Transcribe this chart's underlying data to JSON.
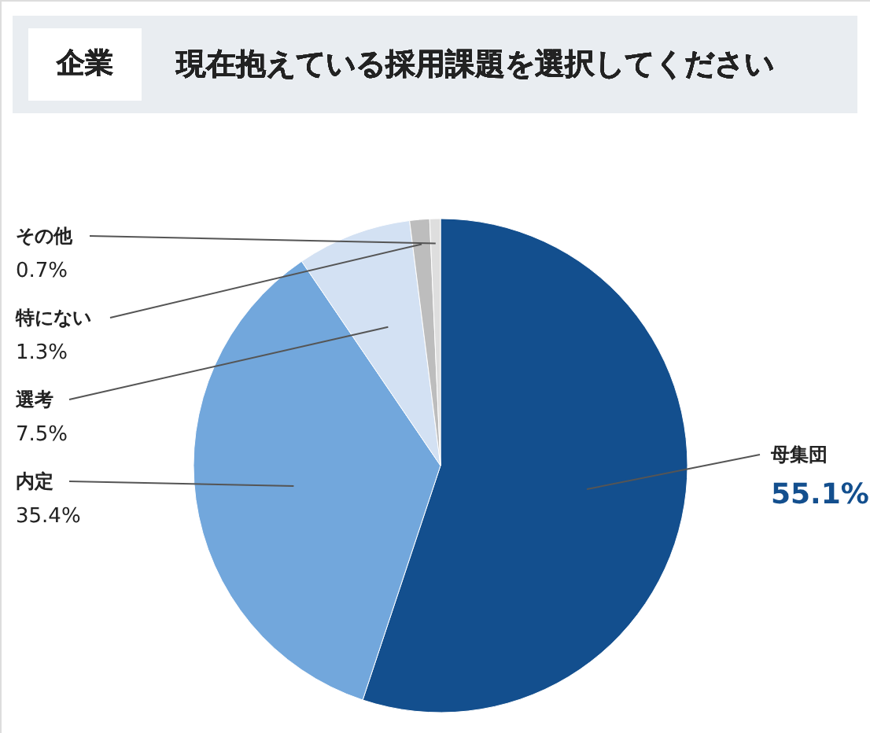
{
  "chart_data": {
    "type": "pie",
    "title": "現在抱えている採用課題を選択してください",
    "subtitle": "企業",
    "categories": [
      "母集団",
      "内定",
      "選考",
      "特にない",
      "その他"
    ],
    "values": [
      55.1,
      35.4,
      7.5,
      1.3,
      0.7
    ],
    "value_labels": [
      "55.1%",
      "35.4%",
      "7.5%",
      "1.3%",
      "0.7%"
    ],
    "colors": [
      "#134f8e",
      "#72a7dc",
      "#d3e1f3",
      "#bdbdbd",
      "#dedede"
    ]
  }
}
